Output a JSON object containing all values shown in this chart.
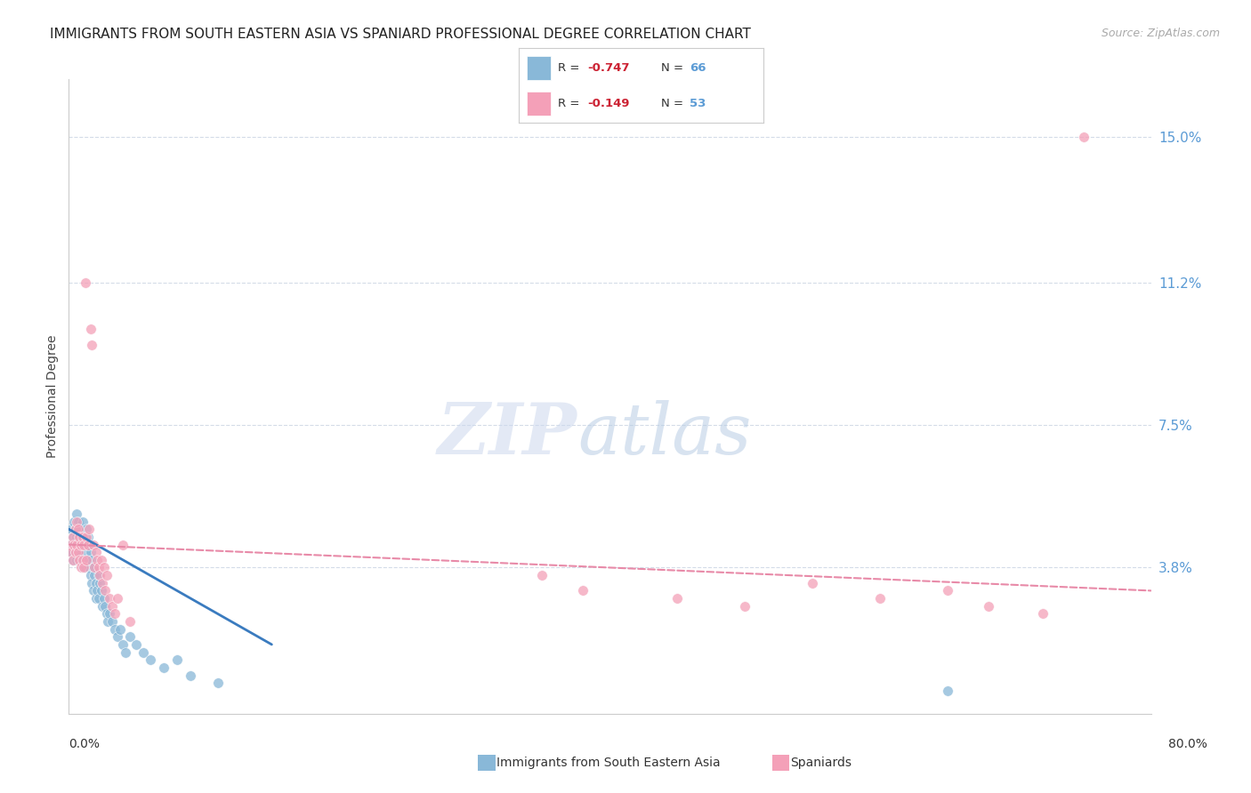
{
  "title": "IMMIGRANTS FROM SOUTH EASTERN ASIA VS SPANIARD PROFESSIONAL DEGREE CORRELATION CHART",
  "source": "Source: ZipAtlas.com",
  "ylabel": "Professional Degree",
  "yticks": [
    0.0,
    0.038,
    0.075,
    0.112,
    0.15
  ],
  "ytick_labels": [
    "",
    "3.8%",
    "7.5%",
    "11.2%",
    "15.0%"
  ],
  "xlim": [
    0.0,
    0.8
  ],
  "ylim": [
    0.0,
    0.165
  ],
  "blue_scatter_x": [
    0.001,
    0.002,
    0.002,
    0.003,
    0.003,
    0.004,
    0.004,
    0.005,
    0.005,
    0.006,
    0.006,
    0.006,
    0.007,
    0.007,
    0.008,
    0.008,
    0.009,
    0.009,
    0.01,
    0.01,
    0.01,
    0.011,
    0.011,
    0.012,
    0.012,
    0.013,
    0.013,
    0.014,
    0.014,
    0.015,
    0.015,
    0.016,
    0.016,
    0.017,
    0.017,
    0.018,
    0.018,
    0.019,
    0.02,
    0.02,
    0.021,
    0.022,
    0.022,
    0.023,
    0.024,
    0.025,
    0.026,
    0.027,
    0.028,
    0.029,
    0.03,
    0.032,
    0.034,
    0.036,
    0.038,
    0.04,
    0.042,
    0.045,
    0.05,
    0.055,
    0.06,
    0.07,
    0.08,
    0.09,
    0.11,
    0.65
  ],
  "blue_scatter_y": [
    0.044,
    0.048,
    0.042,
    0.046,
    0.04,
    0.05,
    0.044,
    0.048,
    0.042,
    0.052,
    0.046,
    0.04,
    0.05,
    0.044,
    0.048,
    0.042,
    0.046,
    0.04,
    0.05,
    0.044,
    0.038,
    0.046,
    0.04,
    0.044,
    0.038,
    0.048,
    0.042,
    0.046,
    0.04,
    0.044,
    0.038,
    0.042,
    0.036,
    0.04,
    0.034,
    0.038,
    0.032,
    0.036,
    0.034,
    0.03,
    0.032,
    0.036,
    0.03,
    0.034,
    0.032,
    0.028,
    0.03,
    0.028,
    0.026,
    0.024,
    0.026,
    0.024,
    0.022,
    0.02,
    0.022,
    0.018,
    0.016,
    0.02,
    0.018,
    0.016,
    0.014,
    0.012,
    0.014,
    0.01,
    0.008,
    0.006
  ],
  "pink_scatter_x": [
    0.001,
    0.002,
    0.003,
    0.003,
    0.004,
    0.005,
    0.005,
    0.006,
    0.006,
    0.007,
    0.007,
    0.008,
    0.008,
    0.009,
    0.009,
    0.01,
    0.01,
    0.011,
    0.011,
    0.012,
    0.013,
    0.013,
    0.014,
    0.015,
    0.016,
    0.017,
    0.018,
    0.019,
    0.02,
    0.021,
    0.022,
    0.023,
    0.024,
    0.025,
    0.026,
    0.027,
    0.028,
    0.03,
    0.032,
    0.034,
    0.036,
    0.04,
    0.045,
    0.35,
    0.38,
    0.45,
    0.5,
    0.55,
    0.6,
    0.65,
    0.68,
    0.72,
    0.75
  ],
  "pink_scatter_y": [
    0.044,
    0.042,
    0.046,
    0.04,
    0.044,
    0.048,
    0.042,
    0.05,
    0.044,
    0.048,
    0.042,
    0.046,
    0.04,
    0.044,
    0.038,
    0.046,
    0.04,
    0.044,
    0.038,
    0.112,
    0.046,
    0.04,
    0.044,
    0.048,
    0.1,
    0.096,
    0.044,
    0.038,
    0.042,
    0.04,
    0.038,
    0.036,
    0.04,
    0.034,
    0.038,
    0.032,
    0.036,
    0.03,
    0.028,
    0.026,
    0.03,
    0.044,
    0.024,
    0.036,
    0.032,
    0.03,
    0.028,
    0.034,
    0.03,
    0.032,
    0.028,
    0.026,
    0.15
  ],
  "blue_line_x": [
    0.0,
    0.15
  ],
  "blue_line_y": [
    0.048,
    0.018
  ],
  "pink_line_x": [
    0.0,
    0.8
  ],
  "pink_line_y": [
    0.044,
    0.032
  ],
  "blue_color": "#89b8d8",
  "pink_color": "#f4a0b8",
  "blue_line_color": "#3a7bbf",
  "pink_line_color": "#e88aa8",
  "title_fontsize": 11,
  "source_fontsize": 9,
  "ylabel_fontsize": 10,
  "tick_label_color": "#5b9bd5",
  "background_color": "#ffffff",
  "grid_color": "#d4dce8",
  "legend_r1": "-0.747",
  "legend_n1": "66",
  "legend_r2": "-0.149",
  "legend_n2": "53",
  "legend_color1": "#89b8d8",
  "legend_color2": "#f4a0b8",
  "label_blue": "Immigrants from South Eastern Asia",
  "label_pink": "Spaniards"
}
